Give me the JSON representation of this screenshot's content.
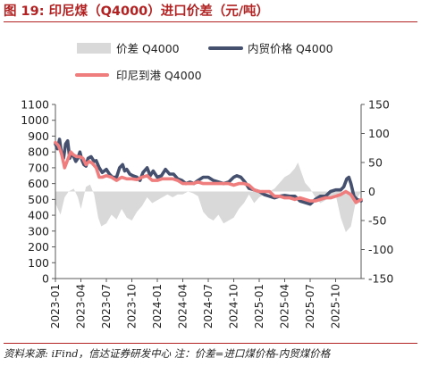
{
  "title": "图 19:  印尼煤（Q4000）进口价差（元/吨）",
  "footer": "资料来源: iFind，信达证券研发中心  注：价差=进口煤价格-内贸煤价格",
  "colors": {
    "diff": "#d9d9d9",
    "domestic": "#44506e",
    "indonesia": "#f07d7d",
    "title": "#b22222"
  },
  "chart_data": {
    "type": "line",
    "title": "",
    "xlabel": "",
    "ylabel": "",
    "legend_placement": "top",
    "grid": false,
    "x_ticks": [
      "2023-01",
      "2023-04",
      "2023-07",
      "2023-10",
      "2024-01",
      "2024-04",
      "2024-07",
      "2024-10",
      "2025-01",
      "2025-04",
      "2025-07",
      "2025-10"
    ],
    "x_range": [
      2023.0,
      2026.0
    ],
    "y_left": {
      "min": 0,
      "max": 1100,
      "ticks": [
        0,
        100,
        200,
        300,
        400,
        500,
        600,
        700,
        800,
        900,
        1000,
        1100
      ]
    },
    "y_right": {
      "min": -150,
      "max": 150,
      "ticks": [
        -150,
        -100,
        -50,
        0,
        50,
        100,
        150
      ]
    },
    "series": [
      {
        "name": "价差 Q4000",
        "type": "area",
        "axis": "right",
        "x": [
          2023.0,
          2023.05,
          2023.09,
          2023.13,
          2023.18,
          2023.22,
          2023.25,
          2023.3,
          2023.34,
          2023.38,
          2023.42,
          2023.45,
          2023.5,
          2023.55,
          2023.6,
          2023.65,
          2023.7,
          2023.75,
          2023.8,
          2023.85,
          2023.9,
          2023.95,
          2024.0,
          2024.05,
          2024.1,
          2024.15,
          2024.2,
          2024.25,
          2024.3,
          2024.35,
          2024.4,
          2024.45,
          2024.5,
          2024.55,
          2024.6,
          2024.65,
          2024.7,
          2024.75,
          2024.8,
          2024.85,
          2024.9,
          2024.95,
          2025.0,
          2025.05,
          2025.1,
          2025.15,
          2025.2,
          2025.25,
          2025.3,
          2025.35,
          2025.38,
          2025.41,
          2025.45,
          2025.5,
          2025.55,
          2025.6,
          2025.65,
          2025.7,
          2025.75,
          2025.8,
          2025.85,
          2025.9,
          2025.95,
          2026.0
        ],
        "values": [
          -20,
          -40,
          -10,
          0,
          5,
          -10,
          -30,
          8,
          12,
          -5,
          -45,
          -60,
          -55,
          -40,
          -48,
          -30,
          -45,
          -50,
          -35,
          -25,
          -10,
          -20,
          -15,
          -10,
          -5,
          -10,
          -5,
          -5,
          0,
          -3,
          -8,
          -35,
          -45,
          -50,
          -40,
          -55,
          -50,
          -45,
          -30,
          -20,
          -5,
          -20,
          -10,
          -5,
          0,
          5,
          15,
          25,
          30,
          40,
          50,
          35,
          15,
          5,
          -10,
          -20,
          -15,
          -10,
          -5,
          -45,
          -70,
          -60,
          -15,
          0
        ]
      },
      {
        "name": "内贸价格 Q4000",
        "type": "line",
        "axis": "left",
        "x": [
          2023.0,
          2023.02,
          2023.04,
          2023.06,
          2023.08,
          2023.1,
          2023.12,
          2023.14,
          2023.16,
          2023.18,
          2023.2,
          2023.22,
          2023.24,
          2023.26,
          2023.28,
          2023.3,
          2023.32,
          2023.35,
          2023.38,
          2023.4,
          2023.43,
          2023.46,
          2023.5,
          2023.53,
          2023.56,
          2023.6,
          2023.63,
          2023.66,
          2023.68,
          2023.7,
          2023.73,
          2023.76,
          2023.8,
          2023.83,
          2023.86,
          2023.9,
          2023.93,
          2023.96,
          2024.0,
          2024.04,
          2024.08,
          2024.12,
          2024.16,
          2024.2,
          2024.24,
          2024.28,
          2024.32,
          2024.36,
          2024.4,
          2024.45,
          2024.5,
          2024.55,
          2024.6,
          2024.65,
          2024.7,
          2024.75,
          2024.78,
          2024.82,
          2024.86,
          2024.9,
          2024.95,
          2025.0,
          2025.05,
          2025.1,
          2025.15,
          2025.2,
          2025.25,
          2025.3,
          2025.35,
          2025.4,
          2025.45,
          2025.5,
          2025.55,
          2025.6,
          2025.65,
          2025.7,
          2025.75,
          2025.8,
          2025.83,
          2025.86,
          2025.88,
          2025.9,
          2025.93,
          2025.96,
          2026.0
        ],
        "values": [
          850,
          820,
          880,
          790,
          760,
          850,
          870,
          760,
          790,
          770,
          740,
          760,
          800,
          750,
          720,
          710,
          760,
          770,
          740,
          745,
          700,
          670,
          690,
          660,
          640,
          640,
          700,
          720,
          680,
          690,
          660,
          650,
          640,
          620,
          670,
          700,
          650,
          680,
          640,
          650,
          690,
          660,
          660,
          630,
          620,
          600,
          610,
          600,
          620,
          640,
          640,
          620,
          610,
          600,
          610,
          640,
          650,
          640,
          610,
          570,
          560,
          550,
          530,
          520,
          510,
          520,
          525,
          520,
          520,
          490,
          480,
          470,
          500,
          520,
          520,
          550,
          560,
          560,
          580,
          630,
          640,
          600,
          520,
          500,
          490
        ]
      },
      {
        "name": "印尼到港 Q4000",
        "type": "line",
        "axis": "left",
        "x": [
          2023.0,
          2023.03,
          2023.06,
          2023.09,
          2023.12,
          2023.15,
          2023.18,
          2023.21,
          2023.24,
          2023.27,
          2023.3,
          2023.33,
          2023.36,
          2023.4,
          2023.43,
          2023.46,
          2023.5,
          2023.55,
          2023.6,
          2023.65,
          2023.7,
          2023.75,
          2023.8,
          2023.85,
          2023.9,
          2023.95,
          2024.0,
          2024.05,
          2024.1,
          2024.15,
          2024.2,
          2024.25,
          2024.3,
          2024.35,
          2024.4,
          2024.45,
          2024.5,
          2024.55,
          2024.6,
          2024.65,
          2024.7,
          2024.75,
          2024.8,
          2024.85,
          2024.9,
          2024.95,
          2025.0,
          2025.05,
          2025.1,
          2025.15,
          2025.2,
          2025.25,
          2025.3,
          2025.35,
          2025.4,
          2025.45,
          2025.5,
          2025.55,
          2025.6,
          2025.65,
          2025.7,
          2025.75,
          2025.8,
          2025.85,
          2025.9,
          2025.95,
          2026.0
        ],
        "values": [
          860,
          840,
          790,
          700,
          750,
          800,
          780,
          770,
          770,
          760,
          720,
          740,
          730,
          700,
          640,
          640,
          650,
          640,
          620,
          640,
          630,
          630,
          625,
          640,
          650,
          620,
          620,
          630,
          630,
          630,
          620,
          600,
          600,
          600,
          610,
          600,
          600,
          600,
          600,
          600,
          600,
          590,
          600,
          600,
          590,
          560,
          550,
          550,
          550,
          520,
          520,
          510,
          510,
          500,
          510,
          500,
          490,
          490,
          500,
          510,
          510,
          520,
          530,
          550,
          530,
          480,
          500
        ]
      }
    ]
  }
}
